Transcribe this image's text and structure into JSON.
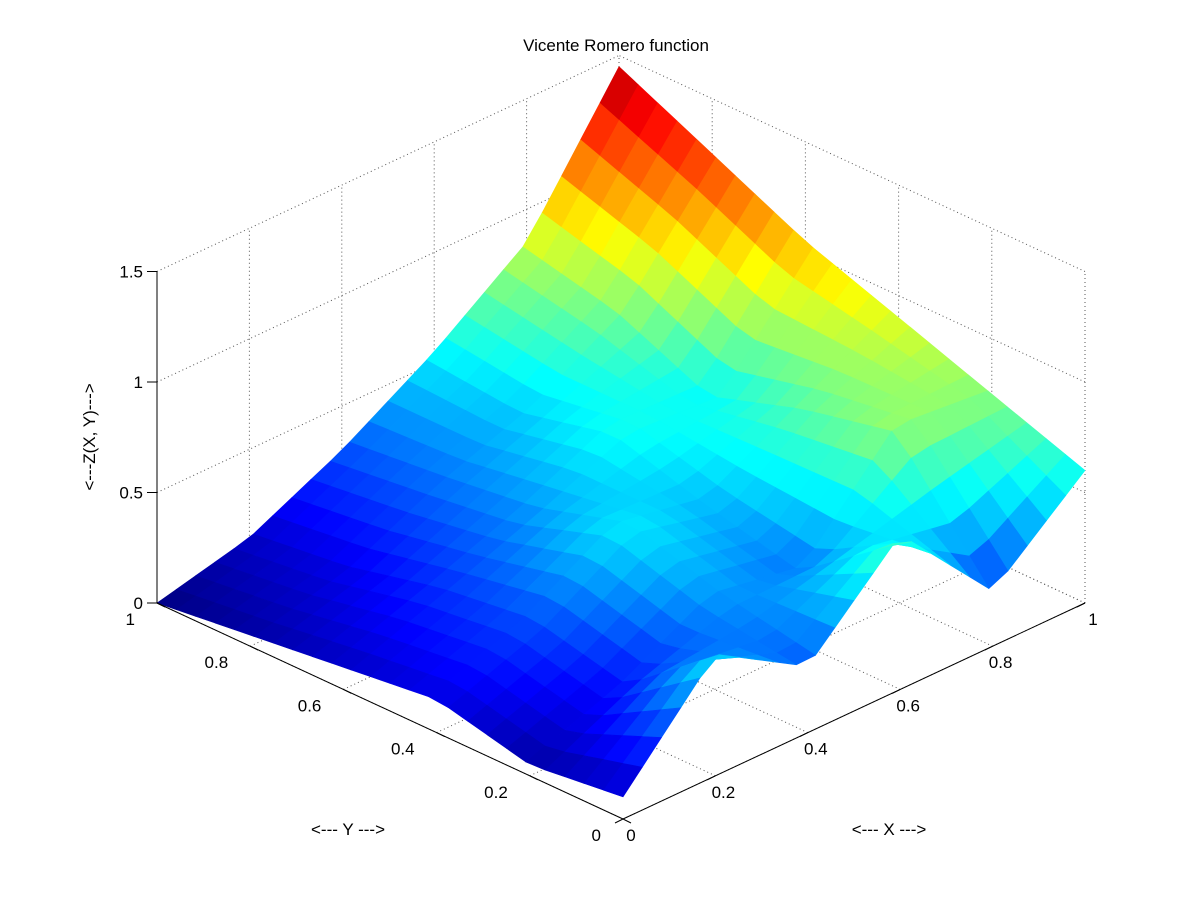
{
  "chart_data": {
    "type": "surface",
    "title": "Vicente Romero function",
    "xlabel": "<--- X --->",
    "ylabel": "<--- Y --->",
    "zlabel": "<---Z(X, Y)--->",
    "xlim": [
      0,
      1
    ],
    "ylim": [
      0,
      1
    ],
    "zlim": [
      0,
      1.5
    ],
    "grid": true,
    "colormap": "jet",
    "x_ticks": [
      "0",
      "0.2",
      "0.4",
      "0.6",
      "0.8",
      "1"
    ],
    "y_ticks": [
      "0",
      "0.2",
      "0.4",
      "0.6",
      "0.8",
      "1"
    ],
    "z_ticks": [
      "0",
      "0.5",
      "1",
      "1.5"
    ],
    "x": [
      0,
      0.2,
      0.4,
      0.6,
      0.8,
      1
    ],
    "y": [
      0,
      0.2,
      0.4,
      0.6,
      0.8,
      1
    ],
    "z": [
      [
        0.1,
        0.55,
        0.3,
        0.7,
        0.25,
        0.6
      ],
      [
        0.05,
        0.2,
        0.42,
        0.35,
        0.8,
        0.75
      ],
      [
        0.15,
        0.3,
        0.55,
        0.45,
        0.7,
        0.9
      ],
      [
        0.1,
        0.25,
        0.4,
        0.6,
        0.55,
        1.05
      ],
      [
        0.05,
        0.15,
        0.35,
        0.5,
        0.75,
        1.25
      ],
      [
        0.0,
        0.1,
        0.3,
        0.55,
        0.85,
        1.45
      ]
    ]
  }
}
